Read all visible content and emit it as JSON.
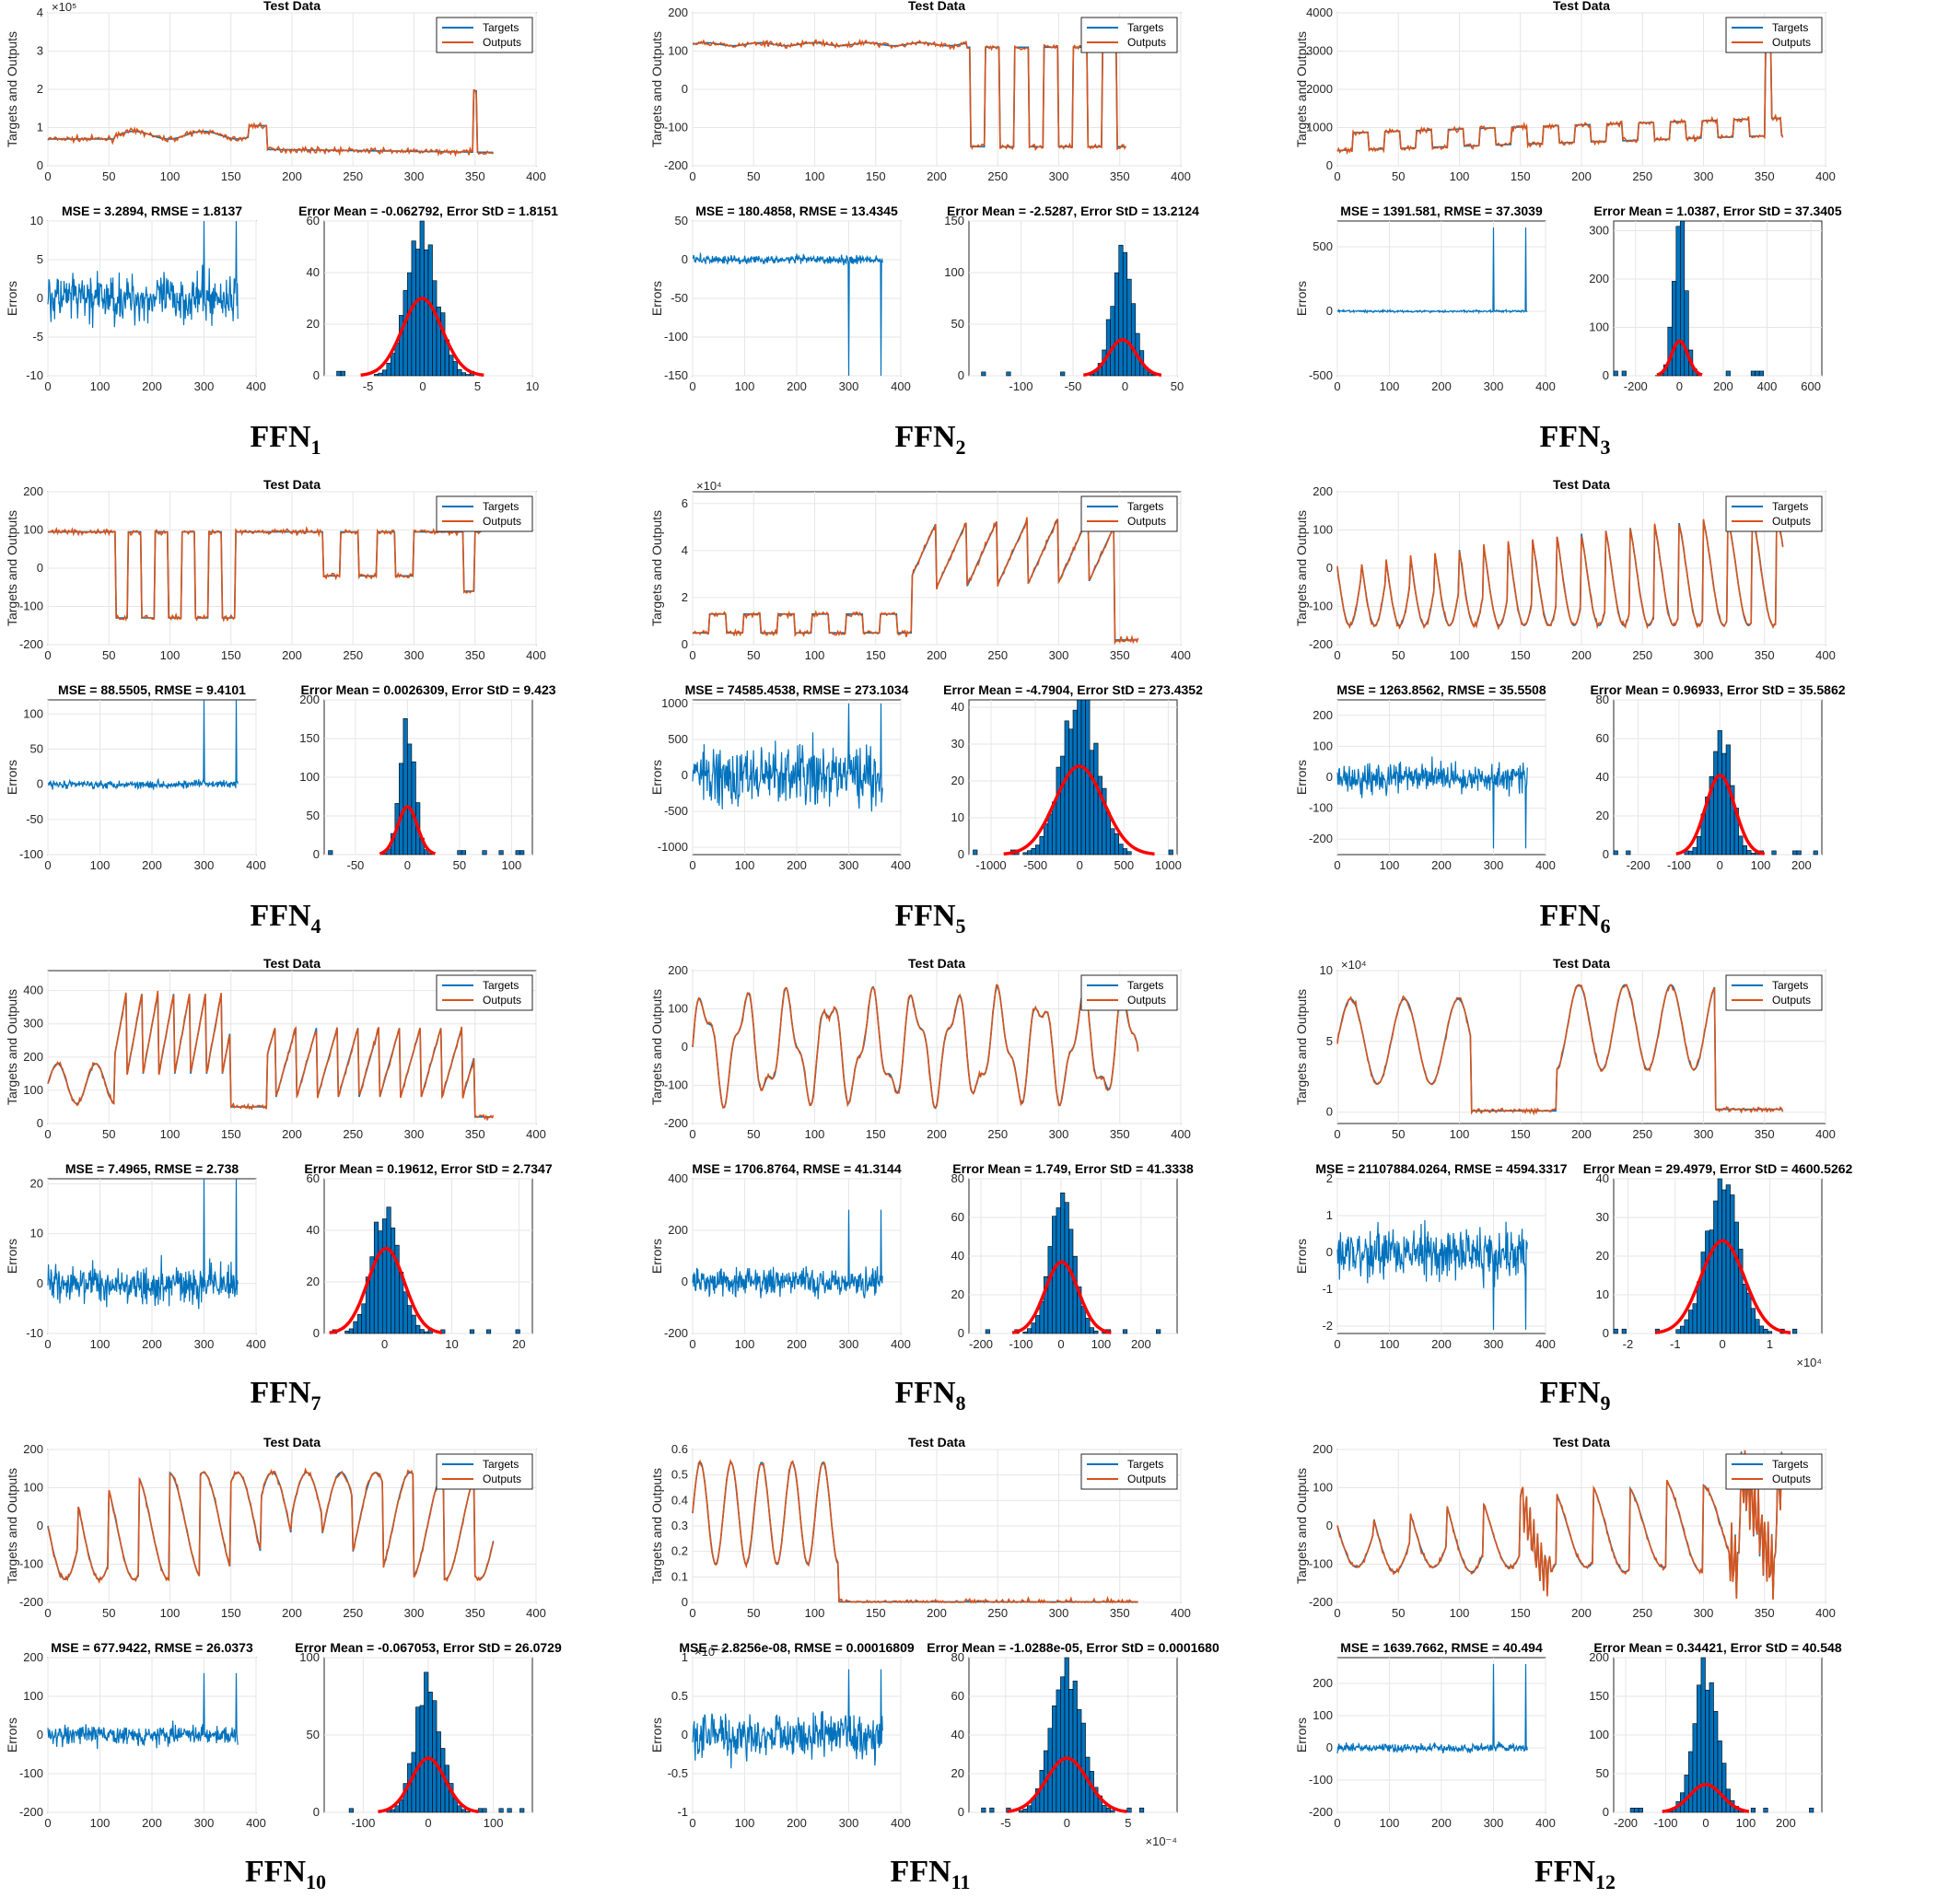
{
  "figure": {
    "panel_title": "Test Data",
    "ylabel_top": "Targets and Outputs",
    "ylabel_err": "Errors",
    "legend_targets": "Targets",
    "legend_outputs": "Outputs",
    "colors": {
      "targets": "#0072BD",
      "outputs": "#D95319",
      "hist_fill": "#0072BD",
      "fit": "#FF0000",
      "grid": "#e6e6e6"
    }
  },
  "chart_data": [
    {
      "label": "FFN",
      "sub": "1",
      "type": "line",
      "top": {
        "title": "Test Data",
        "xlim": [
          0,
          400
        ],
        "ylim": [
          0,
          4
        ],
        "yticks": [
          0,
          1,
          2,
          3,
          4
        ],
        "ytick_labels": [
          "0",
          "1",
          "2",
          "3",
          "4"
        ],
        "exp": "×10⁵",
        "kind": "k1"
      },
      "err": {
        "title": "MSE = 3.2894, RMSE = 1.8137",
        "ylim": [
          -10,
          10
        ],
        "yticks": [
          -10,
          -5,
          0,
          5,
          10
        ],
        "ytick_labels": [
          "-10",
          "-5",
          "0",
          "5",
          "10"
        ],
        "amp": 2.2,
        "spike": 10
      },
      "hist": {
        "title": "Error Mean = -0.062792, Error StD = 1.8151",
        "xlim": [
          -9,
          10
        ],
        "xticks": [
          -5,
          0,
          5,
          10
        ],
        "xtick_labels": [
          "-5",
          "0",
          "5",
          "10"
        ],
        "ylim": [
          0,
          60
        ],
        "yticks": [
          0,
          20,
          40,
          60
        ],
        "ytick_labels": [
          "0",
          "20",
          "40",
          "60"
        ],
        "mean": -0.06,
        "std": 1.8151,
        "peak": 58,
        "fit_peak": 30
      }
    },
    {
      "label": "FFN",
      "sub": "2",
      "type": "line",
      "top": {
        "title": "Test Data",
        "xlim": [
          0,
          400
        ],
        "ylim": [
          -200,
          200
        ],
        "yticks": [
          -200,
          -100,
          0,
          100,
          200
        ],
        "ytick_labels": [
          "-200",
          "-100",
          "0",
          "100",
          "200"
        ],
        "kind": "k2"
      },
      "err": {
        "title": "MSE = 180.4858, RMSE = 13.4345",
        "ylim": [
          -150,
          50
        ],
        "yticks": [
          -150,
          -100,
          -50,
          0,
          50
        ],
        "ytick_labels": [
          "-150",
          "-100",
          "-50",
          "0",
          "50"
        ],
        "amp": 4,
        "spike": -150
      },
      "hist": {
        "title": "Error Mean = -2.5287, Error StD = 13.2124",
        "xlim": [
          -150,
          50
        ],
        "xticks": [
          -100,
          -50,
          0,
          50
        ],
        "xtick_labels": [
          "-100",
          "-50",
          "0",
          "50"
        ],
        "ylim": [
          0,
          150
        ],
        "yticks": [
          0,
          50,
          100,
          150
        ],
        "ytick_labels": [
          "0",
          "50",
          "100",
          "150"
        ],
        "mean": -2.5,
        "std": 13.2,
        "peak": 122,
        "fit_peak": 35
      }
    },
    {
      "label": "FFN",
      "sub": "3",
      "type": "line",
      "top": {
        "title": "Test Data",
        "xlim": [
          0,
          400
        ],
        "ylim": [
          0,
          4000
        ],
        "yticks": [
          0,
          1000,
          2000,
          3000,
          4000
        ],
        "ytick_labels": [
          "0",
          "1000",
          "2000",
          "3000",
          "4000"
        ],
        "kind": "k3"
      },
      "err": {
        "title": "MSE = 1391.581, RMSE = 37.3039",
        "ylim": [
          -500,
          700
        ],
        "yticks": [
          -500,
          0,
          500
        ],
        "ytick_labels": [
          "-500",
          "0",
          "500"
        ],
        "amp": 6,
        "spike": 650
      },
      "hist": {
        "title": "Error Mean = 1.0387, Error StD = 37.3405",
        "xlim": [
          -300,
          650
        ],
        "xticks": [
          -200,
          0,
          200,
          400,
          600
        ],
        "xtick_labels": [
          "-200",
          "0",
          "200",
          "400",
          "600"
        ],
        "ylim": [
          0,
          320
        ],
        "yticks": [
          0,
          100,
          200,
          300
        ],
        "ytick_labels": [
          "0",
          "100",
          "200",
          "300"
        ],
        "mean": 1,
        "std": 37.3,
        "peak": 320,
        "fit_peak": 72
      }
    },
    {
      "label": "FFN",
      "sub": "4",
      "type": "line",
      "top": {
        "title": "Test Data",
        "xlim": [
          0,
          400
        ],
        "ylim": [
          -200,
          200
        ],
        "yticks": [
          -200,
          -100,
          0,
          100,
          200
        ],
        "ytick_labels": [
          "-200",
          "-100",
          "0",
          "100",
          "200"
        ],
        "kind": "k4"
      },
      "err": {
        "title": "MSE = 88.5505, RMSE = 9.4101",
        "ylim": [
          -100,
          120
        ],
        "yticks": [
          -100,
          -50,
          0,
          50,
          100
        ],
        "ytick_labels": [
          "-100",
          "-50",
          "0",
          "50",
          "100"
        ],
        "amp": 4,
        "spike": 120
      },
      "hist": {
        "title": "Error Mean = 0.0026309, Error StD = 9.423",
        "xlim": [
          -80,
          120
        ],
        "xticks": [
          -50,
          0,
          50,
          100
        ],
        "xtick_labels": [
          "-50",
          "0",
          "50",
          "100"
        ],
        "ylim": [
          0,
          200
        ],
        "yticks": [
          0,
          50,
          100,
          150,
          200
        ],
        "ytick_labels": [
          "0",
          "50",
          "100",
          "150",
          "200"
        ],
        "mean": 0,
        "std": 9.4,
        "peak": 175,
        "fit_peak": 62
      }
    },
    {
      "label": "FFN",
      "sub": "5",
      "type": "line",
      "top": {
        "title": "",
        "xlim": [
          0,
          400
        ],
        "ylim": [
          0,
          6.5
        ],
        "yticks": [
          0,
          2,
          4,
          6
        ],
        "ytick_labels": [
          "0",
          "2",
          "4",
          "6"
        ],
        "exp": "×10⁴",
        "kind": "k5"
      },
      "err": {
        "title": "MSE = 74585.4538, RMSE = 273.1034",
        "ylim": [
          -1100,
          1050
        ],
        "yticks": [
          -1000,
          -500,
          0,
          500,
          1000
        ],
        "ytick_labels": [
          "-1000",
          "-500",
          "0",
          "500",
          "1000"
        ],
        "amp": 300,
        "spike": 1000
      },
      "hist": {
        "title": "Error Mean = -4.7904, Error StD = 273.4352",
        "xlim": [
          -1250,
          1100
        ],
        "xticks": [
          -1000,
          -500,
          0,
          500,
          1000
        ],
        "xtick_labels": [
          "-1000",
          "-500",
          "0",
          "500",
          "1000"
        ],
        "ylim": [
          0,
          42
        ],
        "yticks": [
          0,
          10,
          20,
          30,
          40
        ],
        "ytick_labels": [
          "0",
          "10",
          "20",
          "30",
          "40"
        ],
        "mean": -5,
        "std": 273,
        "peak": 42,
        "fit_peak": 24
      }
    },
    {
      "label": "FFN",
      "sub": "6",
      "type": "line",
      "top": {
        "title": "Test Data",
        "xlim": [
          0,
          400
        ],
        "ylim": [
          -200,
          200
        ],
        "yticks": [
          -200,
          -100,
          0,
          100,
          200
        ],
        "ytick_labels": [
          "-200",
          "-100",
          "0",
          "100",
          "200"
        ],
        "kind": "k6"
      },
      "err": {
        "title": "MSE = 1263.8562, RMSE = 35.5508",
        "ylim": [
          -250,
          250
        ],
        "yticks": [
          -200,
          -100,
          0,
          100,
          200
        ],
        "ytick_labels": [
          "-200",
          "-100",
          "0",
          "100",
          "200"
        ],
        "amp": 35,
        "spike": -230
      },
      "hist": {
        "title": "Error Mean = 0.96933, Error StD = 35.5862",
        "xlim": [
          -260,
          250
        ],
        "xticks": [
          -200,
          -100,
          0,
          100,
          200
        ],
        "xtick_labels": [
          "-200",
          "-100",
          "0",
          "100",
          "200"
        ],
        "ylim": [
          0,
          80
        ],
        "yticks": [
          0,
          20,
          40,
          60,
          80
        ],
        "ytick_labels": [
          "0",
          "20",
          "40",
          "60",
          "80"
        ],
        "mean": 1,
        "std": 35.6,
        "peak": 65,
        "fit_peak": 41
      }
    },
    {
      "label": "FFN",
      "sub": "7",
      "type": "line",
      "top": {
        "title": "Test Data",
        "xlim": [
          0,
          400
        ],
        "ylim": [
          0,
          460
        ],
        "yticks": [
          0,
          100,
          200,
          300,
          400
        ],
        "ytick_labels": [
          "0",
          "100",
          "200",
          "300",
          "400"
        ],
        "kind": "k7"
      },
      "err": {
        "title": "MSE = 7.4965, RMSE = 2.738",
        "ylim": [
          -10,
          21
        ],
        "yticks": [
          -10,
          0,
          10,
          20
        ],
        "ytick_labels": [
          "-10",
          "0",
          "10",
          "20"
        ],
        "amp": 2.7,
        "spike": 21
      },
      "hist": {
        "title": "Error Mean = 0.19612, Error StD = 2.7347",
        "xlim": [
          -9,
          22
        ],
        "xticks": [
          0,
          10,
          20
        ],
        "xtick_labels": [
          "0",
          "10",
          "20"
        ],
        "ylim": [
          0,
          60
        ],
        "yticks": [
          0,
          20,
          40,
          60
        ],
        "ytick_labels": [
          "0",
          "20",
          "40",
          "60"
        ],
        "mean": 0.2,
        "std": 2.73,
        "peak": 49,
        "fit_peak": 33
      }
    },
    {
      "label": "FFN",
      "sub": "8",
      "type": "line",
      "top": {
        "title": "Test Data",
        "xlim": [
          0,
          400
        ],
        "ylim": [
          -200,
          200
        ],
        "yticks": [
          -200,
          -100,
          0,
          100,
          200
        ],
        "ytick_labels": [
          "-200",
          "-100",
          "0",
          "100",
          "200"
        ],
        "kind": "k8"
      },
      "err": {
        "title": "MSE = 1706.8764, RMSE = 41.3144",
        "ylim": [
          -200,
          400
        ],
        "yticks": [
          -200,
          0,
          200,
          400
        ],
        "ytick_labels": [
          "-200",
          "0",
          "200",
          "400"
        ],
        "amp": 40,
        "spike": 280
      },
      "hist": {
        "title": "Error Mean = 1.749, Error StD = 41.3338",
        "xlim": [
          -230,
          290
        ],
        "xticks": [
          -200,
          -100,
          0,
          100,
          200
        ],
        "xtick_labels": [
          "-200",
          "-100",
          "0",
          "100",
          "200"
        ],
        "ylim": [
          0,
          80
        ],
        "yticks": [
          0,
          20,
          40,
          60,
          80
        ],
        "ytick_labels": [
          "0",
          "20",
          "40",
          "60",
          "80"
        ],
        "mean": 1.7,
        "std": 41.3,
        "peak": 67,
        "fit_peak": 37
      }
    },
    {
      "label": "FFN",
      "sub": "9",
      "type": "line",
      "top": {
        "title": "Test Data",
        "xlim": [
          0,
          400
        ],
        "ylim": [
          -0.8,
          10
        ],
        "yticks": [
          0,
          5,
          10
        ],
        "ytick_labels": [
          "0",
          "5",
          "10"
        ],
        "exp": "×10⁴",
        "kind": "k9"
      },
      "err": {
        "title": "MSE = 21107884.0264, RMSE = 4594.3317",
        "ylim": [
          -2.2,
          2
        ],
        "yticks": [
          -2,
          -1,
          0,
          1,
          2
        ],
        "ytick_labels": [
          "-2",
          "-1",
          "0",
          "1",
          "2"
        ],
        "amp": 0.5,
        "spike": -2.1
      },
      "hist": {
        "title": "Error Mean = 29.4979, Error StD = 4600.5262",
        "xlim": [
          -2.3,
          2.1
        ],
        "xticks": [
          -2,
          -1,
          0,
          1
        ],
        "xtick_labels": [
          "-2",
          "-1",
          "0",
          "1"
        ],
        "ylim": [
          0,
          40
        ],
        "yticks": [
          0,
          10,
          20,
          30,
          40
        ],
        "ytick_labels": [
          "0",
          "10",
          "20",
          "30",
          "40"
        ],
        "mean": 0,
        "std": 0.46,
        "peak": 38,
        "fit_peak": 24,
        "xexp": "×10⁴"
      }
    },
    {
      "label": "FFN",
      "sub": "10",
      "type": "line",
      "top": {
        "title": "Test Data",
        "xlim": [
          0,
          400
        ],
        "ylim": [
          -200,
          200
        ],
        "yticks": [
          -200,
          -100,
          0,
          100,
          200
        ],
        "ytick_labels": [
          "-200",
          "-100",
          "0",
          "100",
          "200"
        ],
        "kind": "k10"
      },
      "err": {
        "title": "MSE = 677.9422, RMSE = 26.0373",
        "ylim": [
          -200,
          200
        ],
        "yticks": [
          -200,
          -100,
          0,
          100,
          200
        ],
        "ytick_labels": [
          "-200",
          "-100",
          "0",
          "100",
          "200"
        ],
        "amp": 18,
        "spike": 160
      },
      "hist": {
        "title": "Error Mean = -0.067053, Error StD = 26.0729",
        "xlim": [
          -160,
          160
        ],
        "xticks": [
          -100,
          0,
          100
        ],
        "xtick_labels": [
          "-100",
          "0",
          "100"
        ],
        "ylim": [
          0,
          100
        ],
        "yticks": [
          0,
          50,
          100
        ],
        "ytick_labels": [
          "0",
          "50",
          "100"
        ],
        "mean": 0,
        "std": 26,
        "peak": 84,
        "fit_peak": 35
      }
    },
    {
      "label": "FFN",
      "sub": "11",
      "type": "line",
      "top": {
        "title": "Test Data",
        "xlim": [
          0,
          400
        ],
        "ylim": [
          0,
          0.6
        ],
        "yticks": [
          0,
          0.1,
          0.2,
          0.3,
          0.4,
          0.5,
          0.6
        ],
        "ytick_labels": [
          "0",
          "0.1",
          "0.2",
          "0.3",
          "0.4",
          "0.5",
          "0.6"
        ],
        "kind": "k11"
      },
      "err": {
        "title": "MSE = 2.8256e-08, RMSE = 0.00016809",
        "ylim": [
          -1,
          1
        ],
        "yticks": [
          -1,
          -0.5,
          0,
          0.5,
          1
        ],
        "ytick_labels": [
          "-1",
          "-0.5",
          "0",
          "0.5",
          "1"
        ],
        "amp": 0.2,
        "spike": 0.85,
        "yexp": "×10⁻³"
      },
      "hist": {
        "title": "Error Mean = -1.0288e-05, Error StD = 0.0001680",
        "xlim": [
          -8,
          9
        ],
        "xticks": [
          -5,
          0,
          5
        ],
        "xtick_labels": [
          "-5",
          "0",
          "5"
        ],
        "ylim": [
          0,
          80
        ],
        "yticks": [
          0,
          20,
          40,
          60,
          80
        ],
        "ytick_labels": [
          "0",
          "20",
          "40",
          "60",
          "80"
        ],
        "mean": 0,
        "std": 1.68,
        "peak": 76,
        "fit_peak": 28,
        "xexp": "×10⁻⁴"
      }
    },
    {
      "label": "FFN",
      "sub": "12",
      "type": "line",
      "top": {
        "title": "Test Data",
        "xlim": [
          0,
          400
        ],
        "ylim": [
          -200,
          200
        ],
        "yticks": [
          -200,
          -100,
          0,
          100,
          200
        ],
        "ytick_labels": [
          "-200",
          "-100",
          "0",
          "100",
          "200"
        ],
        "kind": "k12"
      },
      "err": {
        "title": "MSE = 1639.7662, RMSE = 40.494",
        "ylim": [
          -200,
          280
        ],
        "yticks": [
          -200,
          -100,
          0,
          100,
          200
        ],
        "ytick_labels": [
          "-200",
          "-100",
          "0",
          "100",
          "200"
        ],
        "amp": 10,
        "spike": 260
      },
      "hist": {
        "title": "Error Mean = 0.34421, Error StD = 40.548",
        "xlim": [
          -230,
          290
        ],
        "xticks": [
          -200,
          -100,
          0,
          100,
          200
        ],
        "xtick_labels": [
          "-200",
          "-100",
          "0",
          "100",
          "200"
        ],
        "ylim": [
          0,
          200
        ],
        "yticks": [
          0,
          50,
          100,
          150,
          200
        ],
        "ytick_labels": [
          "0",
          "50",
          "100",
          "150",
          "200"
        ],
        "mean": 0.3,
        "std": 40.5,
        "peak": 185,
        "fit_peak": 36
      }
    }
  ],
  "xticks_top": [
    "0",
    "50",
    "100",
    "150",
    "200",
    "250",
    "300",
    "350",
    "400"
  ],
  "xticks_err": [
    "0",
    "100",
    "200",
    "300",
    "400"
  ]
}
